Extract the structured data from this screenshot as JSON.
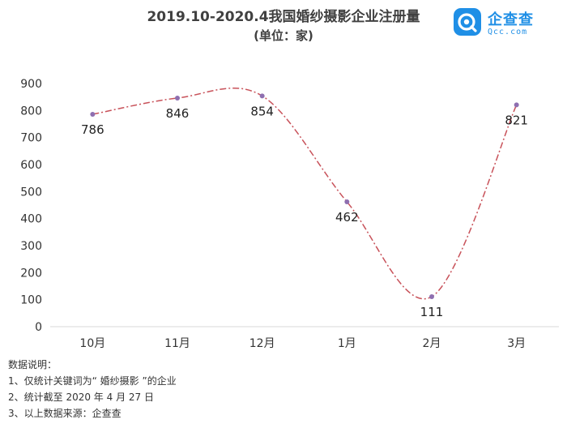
{
  "header": {
    "title": "2019.10-2020.4我国婚纱摄影企业注册量",
    "subtitle": "(单位：家)"
  },
  "logo": {
    "name": "企查查",
    "domain": "Qcc.com",
    "brand_color": "#1f8fe6"
  },
  "chart_data": {
    "type": "line",
    "title": "2019.10-2020.4我国婚纱摄影企业注册量",
    "subtitle": "(单位：家)",
    "categories": [
      "10月",
      "11月",
      "12月",
      "1月",
      "2月",
      "3月"
    ],
    "series": [
      {
        "values": [
          786,
          846,
          854,
          462,
          111,
          821
        ],
        "color": "#c8525a",
        "marker_color": "#8e6fb0"
      }
    ],
    "data_labels": [
      "786",
      "846",
      "854",
      "462",
      "111",
      "821"
    ],
    "ylim": [
      0,
      900
    ],
    "yticks": [
      "0",
      "100",
      "200",
      "300",
      "400",
      "500",
      "600",
      "700",
      "800",
      "900"
    ],
    "line_style": "dash-dot smooth",
    "grid": false,
    "legend": "none"
  },
  "notes": {
    "heading": "数据说明：",
    "items": [
      "1、仅统计关键词为“ 婚纱摄影 ”的企业",
      "2、统计截至 2020 年 4 月 27 日",
      "3、以上数据来源：企查查"
    ]
  }
}
